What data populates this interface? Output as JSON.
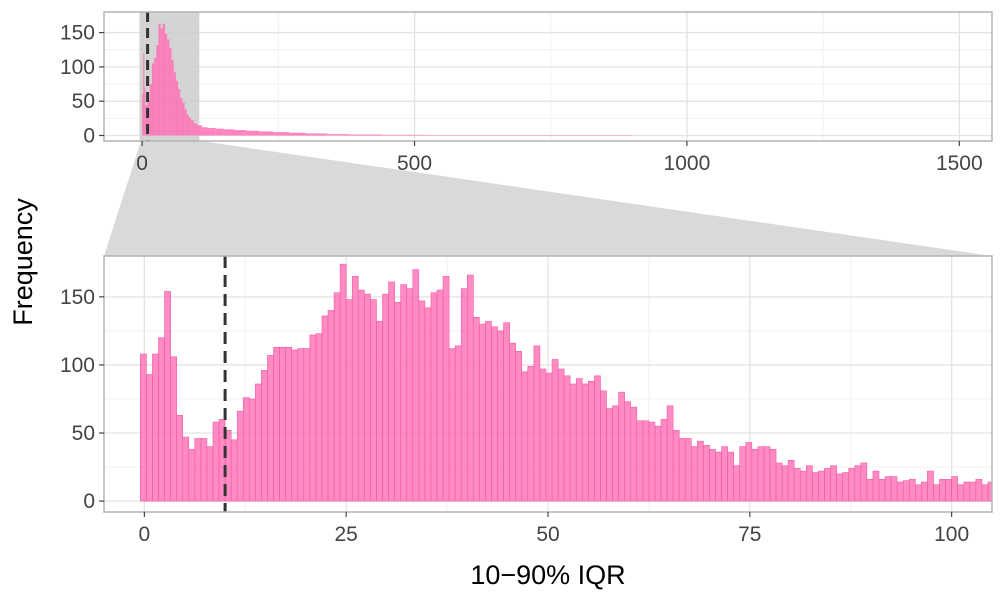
{
  "chart_data": [
    {
      "panel": "overview",
      "type": "histogram",
      "xlim": [
        -70,
        1560
      ],
      "ylim": [
        -8,
        180
      ],
      "x_ticks": [
        0,
        500,
        1000,
        1500
      ],
      "x_tick_labels": [
        "0",
        "500",
        "1000",
        "1500"
      ],
      "y_ticks": [
        0,
        50,
        100,
        150
      ],
      "y_tick_labels": [
        "0",
        "50",
        "100",
        "150"
      ],
      "zoom_region": [
        -5,
        105
      ],
      "reference_line_x": 10,
      "grid": true,
      "bin_width": 1,
      "bins": [
        {
          "x": [
            0,
            2
          ],
          "y": 60
        },
        {
          "x": [
            2,
            4
          ],
          "y": 120
        },
        {
          "x": [
            4,
            6
          ],
          "y": 70
        },
        {
          "x": [
            6,
            10
          ],
          "y": 44
        },
        {
          "x": [
            10,
            14
          ],
          "y": 52
        },
        {
          "x": [
            14,
            18
          ],
          "y": 75
        },
        {
          "x": [
            18,
            22
          ],
          "y": 105
        },
        {
          "x": [
            22,
            26
          ],
          "y": 113
        },
        {
          "x": [
            26,
            30
          ],
          "y": 132
        },
        {
          "x": [
            30,
            34
          ],
          "y": 163
        },
        {
          "x": [
            34,
            38
          ],
          "y": 156
        },
        {
          "x": [
            38,
            42
          ],
          "y": 163
        },
        {
          "x": [
            42,
            46
          ],
          "y": 148
        },
        {
          "x": [
            46,
            50
          ],
          "y": 140
        },
        {
          "x": [
            50,
            54
          ],
          "y": 128
        },
        {
          "x": [
            54,
            58
          ],
          "y": 110
        },
        {
          "x": [
            58,
            62
          ],
          "y": 92
        },
        {
          "x": [
            62,
            66
          ],
          "y": 80
        },
        {
          "x": [
            66,
            70
          ],
          "y": 68
        },
        {
          "x": [
            70,
            74
          ],
          "y": 55
        },
        {
          "x": [
            74,
            78
          ],
          "y": 48
        },
        {
          "x": [
            78,
            82
          ],
          "y": 38
        },
        {
          "x": [
            82,
            86
          ],
          "y": 30
        },
        {
          "x": [
            86,
            90
          ],
          "y": 26
        },
        {
          "x": [
            90,
            95
          ],
          "y": 22
        },
        {
          "x": [
            95,
            100
          ],
          "y": 18
        },
        {
          "x": [
            100,
            110
          ],
          "y": 15
        },
        {
          "x": [
            110,
            120
          ],
          "y": 12
        },
        {
          "x": [
            120,
            135
          ],
          "y": 11
        },
        {
          "x": [
            135,
            150
          ],
          "y": 10
        },
        {
          "x": [
            150,
            170
          ],
          "y": 9
        },
        {
          "x": [
            170,
            190
          ],
          "y": 8
        },
        {
          "x": [
            190,
            215
          ],
          "y": 7
        },
        {
          "x": [
            215,
            240
          ],
          "y": 6
        },
        {
          "x": [
            240,
            270
          ],
          "y": 5
        },
        {
          "x": [
            270,
            300
          ],
          "y": 4
        },
        {
          "x": [
            300,
            340
          ],
          "y": 3
        },
        {
          "x": [
            340,
            380
          ],
          "y": 2
        },
        {
          "x": [
            380,
            440
          ],
          "y": 1.5
        },
        {
          "x": [
            440,
            520
          ],
          "y": 1
        },
        {
          "x": [
            520,
            650
          ],
          "y": 0.6
        },
        {
          "x": [
            650,
            900
          ],
          "y": 0.3
        }
      ]
    },
    {
      "panel": "zoom",
      "type": "histogram",
      "xlim": [
        -5,
        105
      ],
      "ylim": [
        -8,
        180
      ],
      "x_ticks": [
        0,
        25,
        50,
        75,
        100
      ],
      "x_tick_labels": [
        "0",
        "25",
        "50",
        "75",
        "100"
      ],
      "y_ticks": [
        0,
        50,
        100,
        150
      ],
      "y_tick_labels": [
        "0",
        "50",
        "100",
        "150"
      ],
      "xlabel": "10−90% IQR",
      "ylabel": "Frequency",
      "reference_line_x": 10,
      "grid": true,
      "bin_start": -0.5,
      "bin_width": 0.75,
      "values": [
        108,
        93,
        108,
        120,
        154,
        106,
        63,
        47,
        38,
        46,
        46,
        40,
        58,
        60,
        52,
        45,
        66,
        76,
        75,
        86,
        96,
        107,
        113,
        113,
        113,
        111,
        112,
        112,
        122,
        123,
        136,
        140,
        153,
        174,
        148,
        165,
        155,
        152,
        148,
        132,
        152,
        161,
        146,
        159,
        156,
        170,
        147,
        142,
        153,
        155,
        165,
        112,
        114,
        156,
        166,
        135,
        130,
        132,
        128,
        125,
        131,
        116,
        110,
        95,
        99,
        114,
        97,
        94,
        104,
        97,
        92,
        86,
        90,
        86,
        88,
        92,
        81,
        68,
        70,
        80,
        73,
        69,
        59,
        59,
        58,
        55,
        60,
        70,
        52,
        46,
        46,
        40,
        44,
        41,
        38,
        36,
        40,
        36,
        26,
        40,
        43,
        38,
        40,
        40,
        38,
        28,
        26,
        30,
        24,
        22,
        26,
        21,
        22,
        24,
        26,
        20,
        21,
        24,
        26,
        28,
        16,
        22,
        16,
        18,
        18,
        14,
        15,
        16,
        12,
        14,
        22,
        12,
        16,
        16,
        18,
        12,
        14,
        14,
        16,
        12,
        14,
        12,
        16,
        11,
        10,
        12,
        10,
        14
      ],
      "series_color": "#ff6eb4"
    }
  ]
}
